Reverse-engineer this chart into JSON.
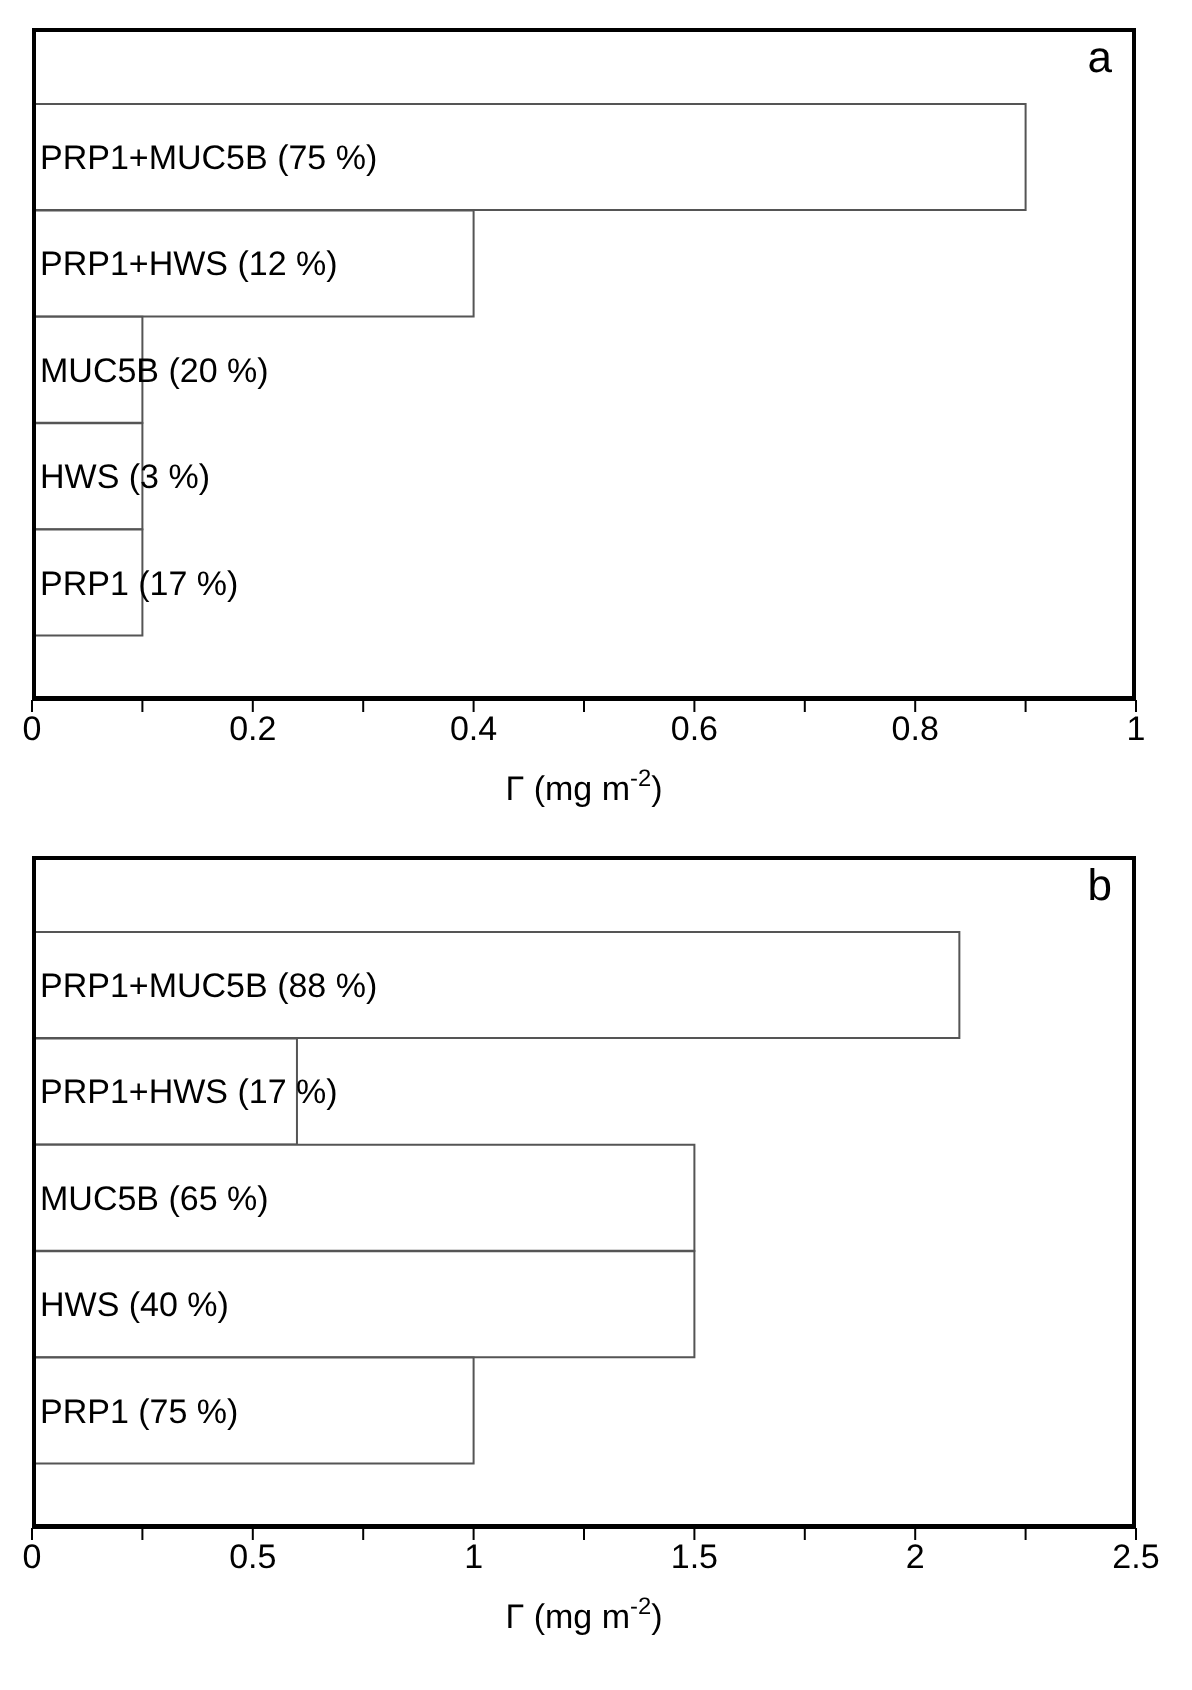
{
  "chart_data": [
    {
      "type": "bar",
      "orientation": "horizontal",
      "categories": [
        "PRP1+MUC5B (75 %)",
        "PRP1+HWS (12 %)",
        "MUC5B (20 %)",
        "HWS (3 %)",
        "PRP1 (17 %)"
      ],
      "values": [
        0.9,
        0.4,
        0.1,
        0.1,
        0.1
      ],
      "color": "#ffffff",
      "xlim": [
        0,
        1
      ],
      "xticks": [
        0,
        {
          "value": 0.1,
          "label": null
        },
        0.2,
        {
          "value": 0.3,
          "label": null
        },
        0.4,
        {
          "value": 0.5,
          "label": null
        },
        0.6,
        {
          "value": 0.7,
          "label": null
        },
        0.8,
        {
          "value": 0.9,
          "label": null
        },
        1
      ],
      "xlabel": "Γ (mg m$^{-2}$)",
      "annotations": [
        "a"
      ],
      "grid": false
    },
    {
      "type": "bar",
      "orientation": "horizontal",
      "categories": [
        "PRP1+MUC5B (88 %)",
        "PRP1+HWS (17 %)",
        "MUC5B (65 %)",
        "HWS (40 %)",
        "PRP1 (75 %)"
      ],
      "values": [
        2.1,
        0.6,
        1.5,
        1.5,
        1
      ],
      "color": "#ffffff",
      "xlim": [
        0,
        2.5
      ],
      "xticks": [
        0,
        {
          "value": 0.25,
          "label": null
        },
        0.5,
        {
          "value": 0.75,
          "label": null
        },
        1,
        {
          "value": 1.25,
          "label": null
        },
        1.5,
        {
          "value": 1.75,
          "label": null
        },
        2,
        {
          "value": 2.25,
          "label": null
        },
        2.5
      ],
      "xlabel": "Γ (mg m$^{-2}$)",
      "annotations": [
        "b"
      ],
      "grid": false
    }
  ]
}
